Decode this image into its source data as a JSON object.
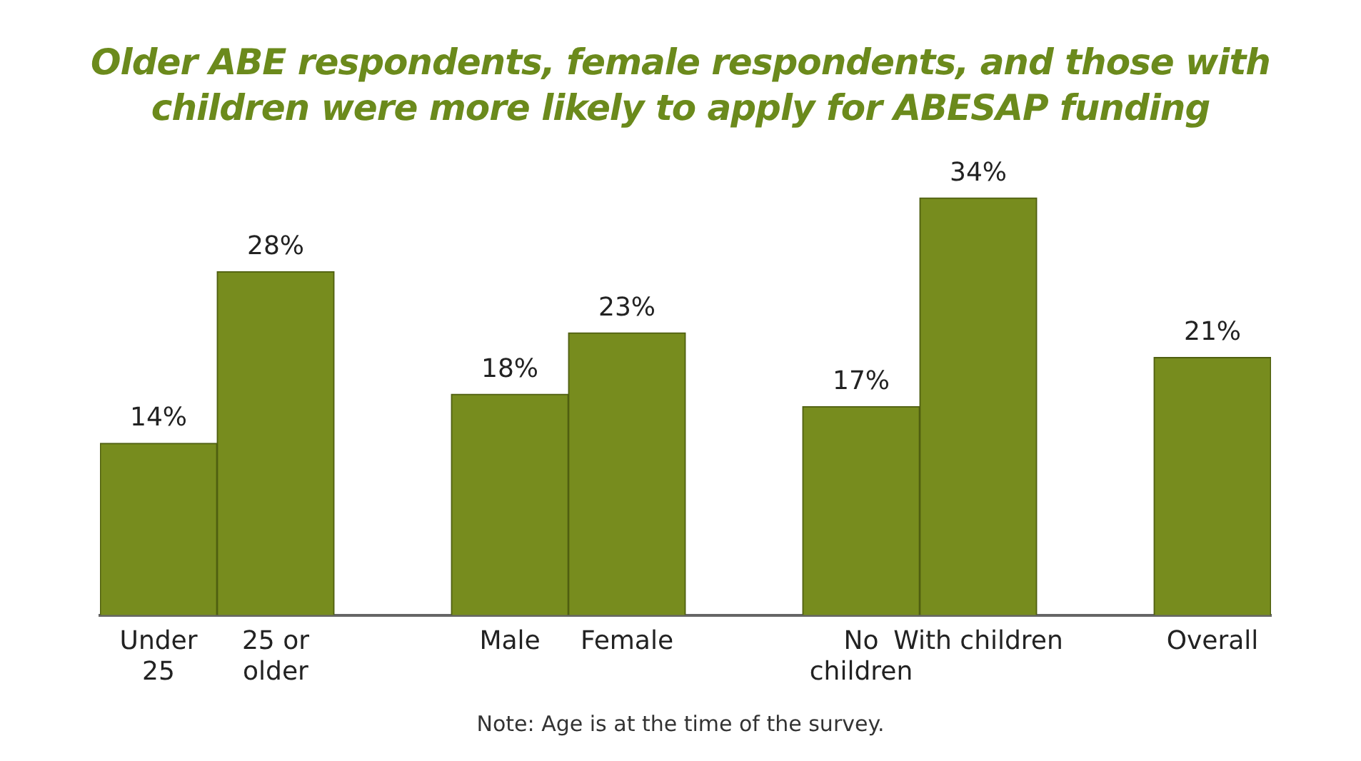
{
  "chart_data": {
    "type": "bar",
    "title": "Older ABE respondents, female respondents, and those with children were more likely to apply for ABESAP funding",
    "categories": [
      "Under\n25",
      "25 or\nolder",
      null,
      "Male",
      "Female",
      null,
      "No\nchildren",
      "With children",
      null,
      "Overall"
    ],
    "values": [
      14,
      28,
      null,
      18,
      23,
      null,
      17,
      34,
      null,
      21
    ],
    "value_labels": [
      "14%",
      "28%",
      null,
      "18%",
      "23%",
      null,
      "17%",
      "34%",
      null,
      "21%"
    ],
    "color": "#778c1e",
    "annotations": [
      "Note: Age is at the time of the survey."
    ]
  }
}
